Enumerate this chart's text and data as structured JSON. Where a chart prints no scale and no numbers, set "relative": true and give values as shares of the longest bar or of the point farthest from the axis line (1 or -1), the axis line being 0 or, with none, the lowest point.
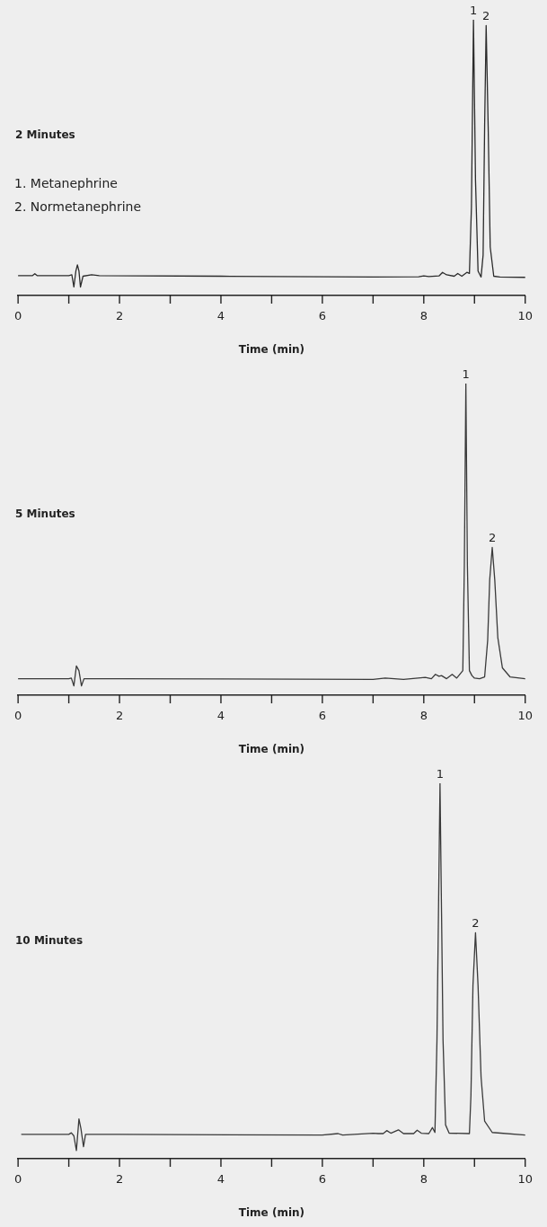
{
  "chart_data": [
    {
      "type": "line",
      "title": "2 Minutes",
      "xlabel": "Time (min)",
      "relative": true,
      "color": "#2b2b2b",
      "xlim": [
        0,
        10
      ],
      "xticks": [
        0,
        {
          "value": 1,
          "label": null
        },
        2,
        {
          "value": 3,
          "label": null
        },
        4,
        {
          "value": 5,
          "label": null
        },
        6,
        {
          "value": 7,
          "label": null
        },
        8,
        {
          "value": 9,
          "label": null
        },
        10
      ],
      "annotations": [
        "1. Metanephrine",
        "2. Normetanephrine",
        {
          "text": "1",
          "x": 8.98,
          "y": 1
        },
        {
          "text": "2",
          "x": 9.23,
          "y": 0.979
        }
      ],
      "x": [
        0,
        0.28,
        0.33,
        0.38,
        1.0,
        1.06,
        1.1,
        1.14,
        1.17,
        1.2,
        1.23,
        1.28,
        1.45,
        1.6,
        4,
        7,
        7.9,
        8.0,
        8.1,
        8.3,
        8.37,
        8.45,
        8.6,
        8.67,
        8.75,
        8.85,
        8.9,
        8.94,
        8.98,
        9.02,
        9.07,
        9.13,
        9.17,
        9.2,
        9.23,
        9.27,
        9.31,
        9.38,
        9.5,
        10
      ],
      "values": [
        0.072,
        0.072,
        0.079,
        0.072,
        0.072,
        0.075,
        0.031,
        0.089,
        0.111,
        0.089,
        0.031,
        0.07,
        0.075,
        0.072,
        0.07,
        0.067,
        0.068,
        0.071,
        0.069,
        0.071,
        0.084,
        0.075,
        0.07,
        0.08,
        0.07,
        0.084,
        0.08,
        0.322,
        1,
        0.419,
        0.089,
        0.067,
        0.147,
        0.612,
        0.979,
        0.612,
        0.176,
        0.07,
        0.067,
        0.066
      ]
    },
    {
      "type": "line",
      "title": "5 Minutes",
      "xlabel": "Time (min)",
      "relative": true,
      "color": "#3a3a3a",
      "xlim": [
        0,
        10
      ],
      "xticks": [
        0,
        {
          "value": 1,
          "label": null
        },
        2,
        {
          "value": 3,
          "label": null
        },
        4,
        {
          "value": 5,
          "label": null
        },
        6,
        {
          "value": 7,
          "label": null
        },
        8,
        {
          "value": 9,
          "label": null
        },
        10
      ],
      "annotations": [
        {
          "text": "1",
          "x": 8.83,
          "y": 1
        },
        {
          "text": "2",
          "x": 9.35,
          "y": 0.474
        }
      ],
      "x": [
        0,
        1.0,
        1.05,
        1.1,
        1.15,
        1.2,
        1.25,
        1.3,
        2,
        7,
        7.24,
        7.6,
        8.03,
        8.15,
        8.23,
        8.3,
        8.35,
        8.45,
        8.56,
        8.65,
        8.73,
        8.77,
        8.8,
        8.83,
        8.86,
        8.9,
        8.95,
        9.0,
        9.1,
        9.2,
        9.26,
        9.3,
        9.35,
        9.4,
        9.46,
        9.55,
        9.7,
        10
      ],
      "values": [
        0.053,
        0.053,
        0.055,
        0.03,
        0.094,
        0.079,
        0.03,
        0.053,
        0.053,
        0.051,
        0.055,
        0.051,
        0.057,
        0.053,
        0.067,
        0.061,
        0.063,
        0.053,
        0.067,
        0.055,
        0.071,
        0.079,
        0.418,
        1,
        0.418,
        0.079,
        0.063,
        0.055,
        0.053,
        0.059,
        0.176,
        0.37,
        0.474,
        0.37,
        0.185,
        0.088,
        0.059,
        0.053
      ]
    },
    {
      "type": "line",
      "title": "10 Minutes",
      "xlabel": "Time (min)",
      "relative": true,
      "color": "#3a3a3a",
      "xlim": [
        0,
        10
      ],
      "xticks": [
        0,
        {
          "value": 1,
          "label": null
        },
        2,
        {
          "value": 3,
          "label": null
        },
        4,
        {
          "value": 5,
          "label": null
        },
        6,
        {
          "value": 7,
          "label": null
        },
        8,
        {
          "value": 9,
          "label": null
        },
        10
      ],
      "annotations": [
        {
          "text": "1",
          "x": 8.32,
          "y": 1
        },
        {
          "text": "2",
          "x": 9.02,
          "y": 0.602
        }
      ],
      "x": [
        0.07,
        1.0,
        1.05,
        1.1,
        1.15,
        1.2,
        1.24,
        1.29,
        1.33,
        2,
        6,
        6.31,
        6.4,
        7.0,
        7.1,
        7.2,
        7.27,
        7.35,
        7.5,
        7.6,
        7.8,
        7.87,
        7.95,
        8.1,
        8.17,
        8.22,
        8.26,
        8.32,
        8.38,
        8.43,
        8.5,
        8.9,
        8.93,
        8.97,
        9.02,
        9.07,
        9.13,
        9.2,
        9.35,
        10
      ],
      "values": [
        0.065,
        0.065,
        0.069,
        0.061,
        0.022,
        0.106,
        0.08,
        0.032,
        0.065,
        0.065,
        0.063,
        0.067,
        0.063,
        0.068,
        0.067,
        0.067,
        0.075,
        0.068,
        0.077,
        0.067,
        0.067,
        0.076,
        0.068,
        0.067,
        0.083,
        0.07,
        0.315,
        1,
        0.315,
        0.09,
        0.068,
        0.067,
        0.168,
        0.462,
        0.602,
        0.462,
        0.217,
        0.1,
        0.07,
        0.063
      ]
    }
  ]
}
